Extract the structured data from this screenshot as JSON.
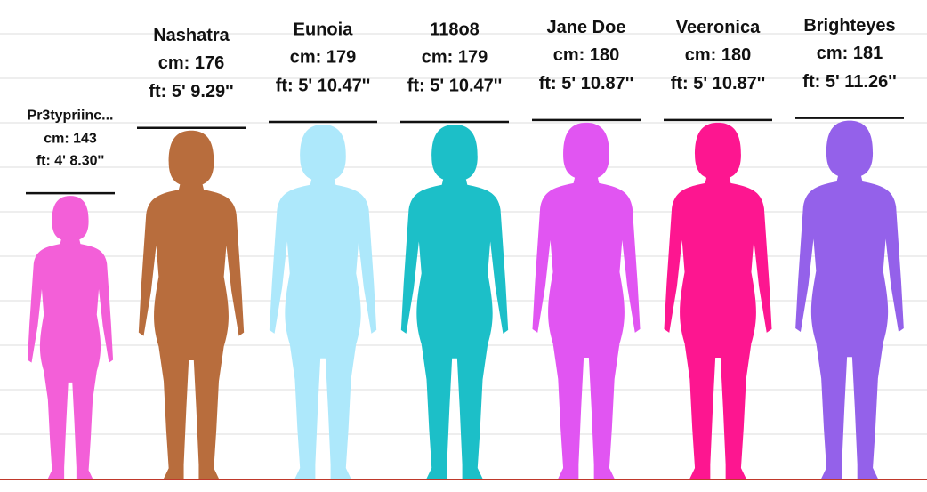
{
  "chart_data": {
    "type": "silhouette",
    "categories": [
      "Pr3typriinc...",
      "Nashatra",
      "Eunoia",
      "118o8",
      "Jane Doe",
      "Veeronica",
      "Brighteyes"
    ],
    "values": [
      143,
      176,
      179,
      179,
      180,
      180,
      181
    ],
    "value_labels": [
      "cm: 143",
      "cm: 176",
      "cm: 179",
      "cm: 179",
      "cm: 180",
      "cm: 180",
      "cm: 181"
    ],
    "ft_labels": [
      "ft: 4' 8.30''",
      "ft: 5' 9.29''",
      "ft: 5' 10.47''",
      "ft: 5' 10.47''",
      "ft: 5' 10.87''",
      "ft: 5' 10.87''",
      "ft: 5' 11.26''"
    ],
    "colors": [
      "#f35fd8",
      "#b86d3d",
      "#ade8fb",
      "#1cbfc8",
      "#e155f2",
      "#fd1690",
      "#9461ea"
    ],
    "ylim": [
      0,
      242
    ]
  }
}
